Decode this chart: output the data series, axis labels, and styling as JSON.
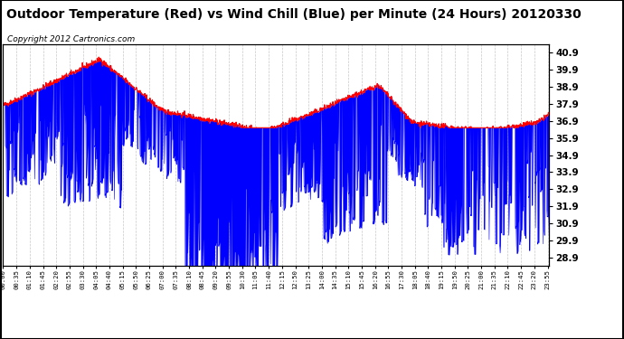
{
  "title": "Outdoor Temperature (Red) vs Wind Chill (Blue) per Minute (24 Hours) 20120330",
  "copyright_text": "Copyright 2012 Cartronics.com",
  "ylim": [
    28.4,
    41.4
  ],
  "yticks": [
    28.9,
    29.9,
    30.9,
    31.9,
    32.9,
    33.9,
    34.9,
    35.9,
    36.9,
    37.9,
    38.9,
    39.9,
    40.9
  ],
  "background_color": "#ffffff",
  "grid_color": "#c8c8c8",
  "title_fontsize": 10,
  "copyright_fontsize": 6.5,
  "red_color": "#ff0000",
  "blue_color": "#0000ff",
  "n_minutes": 1440,
  "tick_interval": 35
}
